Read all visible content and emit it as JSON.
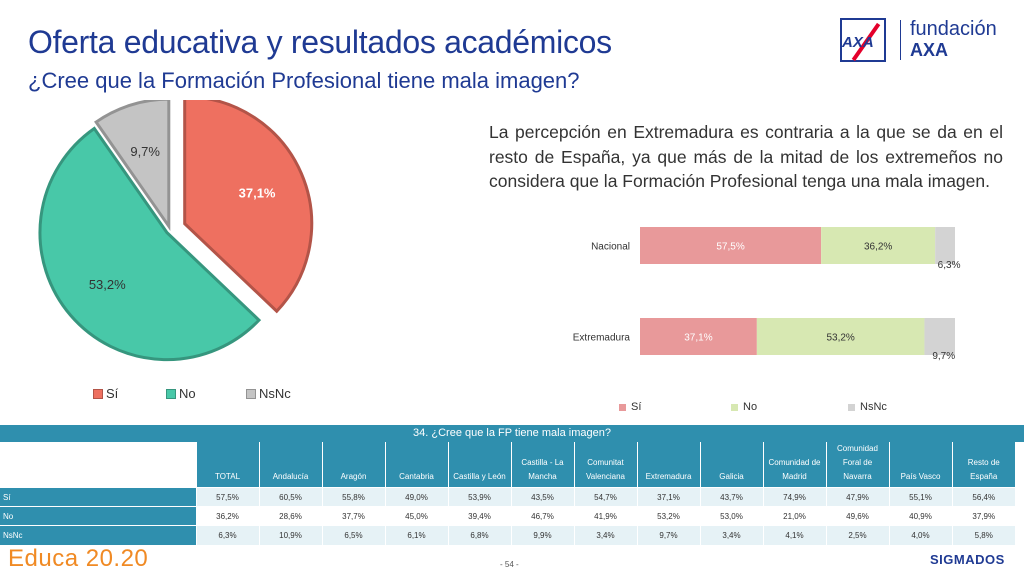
{
  "header": {
    "title": "Oferta educativa y resultados académicos",
    "subtitle": "¿Cree que la Formación Profesional tiene mala imagen?"
  },
  "logo": {
    "brand_mark": "AXA",
    "name_line1": "fundación",
    "name_line2": "AXA"
  },
  "description": "La percepción en Extremadura es contraria a la que se da en el resto de España, ya que más de la mitad de los extremeños no considera que la Formación Profesional tenga una mala imagen.",
  "chart_data": [
    {
      "type": "pie",
      "categories": [
        "Sí",
        "No",
        "NsNc"
      ],
      "values": [
        37.1,
        53.2,
        9.7
      ],
      "value_labels": [
        "37,1%",
        "53,2%",
        "9,7%"
      ],
      "colors": [
        "#ee7060",
        "#48c8a8",
        "#c4c4c4"
      ],
      "exploded": "Sí",
      "legend": "bottom"
    },
    {
      "type": "bar",
      "orientation": "horizontal-stacked-100",
      "categories": [
        "Nacional",
        "Extremadura"
      ],
      "series": [
        {
          "name": "Sí",
          "values": [
            57.5,
            37.1
          ],
          "labels": [
            "57,5%",
            "37,1%"
          ],
          "color": "#e8999a"
        },
        {
          "name": "No",
          "values": [
            36.2,
            53.2
          ],
          "labels": [
            "36,2%",
            "53,2%"
          ],
          "color": "#d7e8b2"
        },
        {
          "name": "NsNc",
          "values": [
            6.3,
            9.7
          ],
          "labels": [
            "6,3%",
            "9,7%"
          ],
          "color": "#d3d3d3"
        }
      ],
      "legend": "bottom"
    },
    {
      "type": "table",
      "title": "34. ¿Cree que la FP tiene mala imagen?",
      "columns": [
        "TOTAL",
        "Andalucía",
        "Aragón",
        "Cantabria",
        "Castilla y León",
        "Castilla - La Mancha",
        "Comunitat Valenciana",
        "Extremadura",
        "Galicia",
        "Comunidad de Madrid",
        "Comunidad Foral de Navarra",
        "País Vasco",
        "Resto de España"
      ],
      "rows": [
        {
          "label": "Sí",
          "values": [
            "57,5%",
            "60,5%",
            "55,8%",
            "49,0%",
            "53,9%",
            "43,5%",
            "54,7%",
            "37,1%",
            "43,7%",
            "74,9%",
            "47,9%",
            "55,1%",
            "56,4%"
          ]
        },
        {
          "label": "No",
          "values": [
            "36,2%",
            "28,6%",
            "37,7%",
            "45,0%",
            "39,4%",
            "46,7%",
            "41,9%",
            "53,2%",
            "53,0%",
            "21,0%",
            "49,6%",
            "40,9%",
            "37,9%"
          ]
        },
        {
          "label": "NsNc",
          "values": [
            "6,3%",
            "10,9%",
            "6,5%",
            "6,1%",
            "6,8%",
            "9,9%",
            "3,4%",
            "9,7%",
            "3,4%",
            "4,1%",
            "2,5%",
            "4,0%",
            "5,8%"
          ]
        }
      ]
    }
  ],
  "footer": {
    "brand": "Educa 20.20",
    "page": "- 54 -",
    "company": "SIGMADOS"
  }
}
